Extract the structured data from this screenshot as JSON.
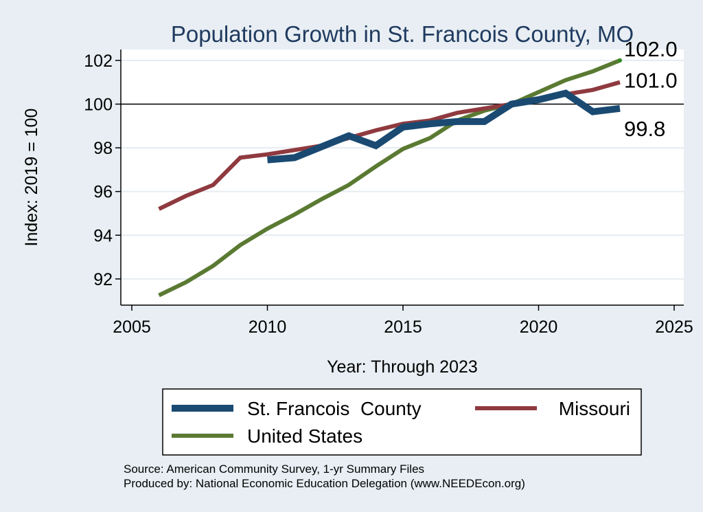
{
  "chart_data": {
    "type": "line",
    "title": "Population Growth in St. Francois County, MO",
    "xlabel": "Year: Through 2023",
    "ylabel": "Index: 2019 = 100",
    "xlim": [
      2005,
      2025
    ],
    "ylim": [
      90.8,
      102.5
    ],
    "xticks": [
      2005,
      2010,
      2015,
      2020,
      2025
    ],
    "yticks": [
      92,
      94,
      96,
      98,
      100,
      102
    ],
    "reference_line": 100,
    "grid": true,
    "legend_position": "bottom",
    "series": [
      {
        "name": "St. Francois  County",
        "color": "#1a4a72",
        "x": [
          2010,
          2011,
          2012,
          2013,
          2014,
          2015,
          2016,
          2017,
          2018,
          2019,
          2020,
          2021,
          2022,
          2023
        ],
        "values": [
          97.45,
          97.55,
          98.05,
          98.55,
          98.1,
          98.95,
          99.1,
          99.2,
          99.2,
          100.0,
          100.2,
          100.5,
          99.65,
          99.8
        ],
        "end_label": "99.8"
      },
      {
        "name": "Missouri",
        "color": "#8f3a3f",
        "x": [
          2006,
          2007,
          2008,
          2009,
          2010,
          2011,
          2012,
          2013,
          2014,
          2015,
          2016,
          2017,
          2018,
          2019,
          2020,
          2021,
          2022,
          2023
        ],
        "values": [
          95.2,
          95.8,
          96.3,
          97.55,
          97.7,
          97.9,
          98.1,
          98.45,
          98.8,
          99.1,
          99.25,
          99.6,
          99.8,
          100.0,
          100.2,
          100.45,
          100.65,
          101.0
        ],
        "end_label": "101.0"
      },
      {
        "name": "United States",
        "color": "#5a7a32",
        "x": [
          2006,
          2007,
          2008,
          2009,
          2010,
          2011,
          2012,
          2013,
          2014,
          2015,
          2016,
          2017,
          2018,
          2019,
          2020,
          2021,
          2022,
          2023
        ],
        "values": [
          91.25,
          91.85,
          92.6,
          93.55,
          94.3,
          94.95,
          95.65,
          96.3,
          97.15,
          97.95,
          98.45,
          99.25,
          99.7,
          100.0,
          100.55,
          101.1,
          101.5,
          102.0
        ],
        "end_label": "102.0"
      }
    ]
  },
  "footer": {
    "source": "Source: American Community Survey, 1-yr Summary Files",
    "produced": "Produced by: National Economic Education Delegation (www.NEEDEcon.org)"
  }
}
